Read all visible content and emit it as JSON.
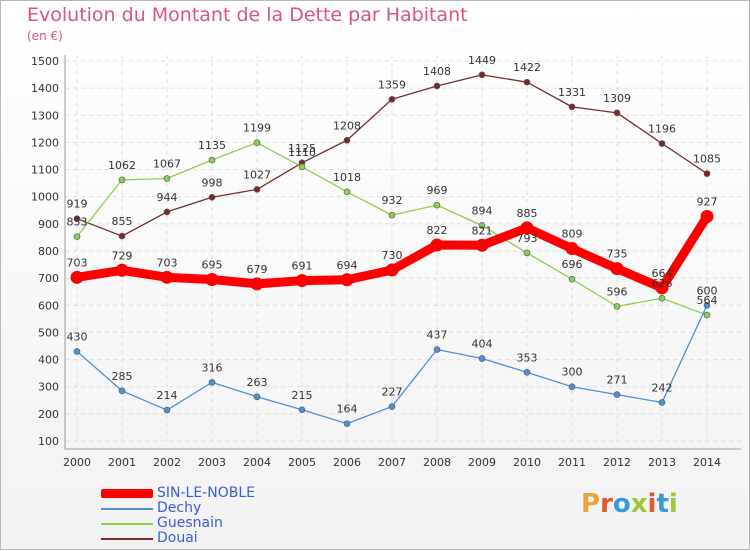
{
  "header": {
    "title": "Evolution du Montant de la Dette par Habitant",
    "subtitle": "(en €)"
  },
  "logo": {
    "text": "Proxiti",
    "colors": [
      "#e8a33d",
      "#e05a2b",
      "#3a9ad9",
      "#a0c43c",
      "#e05a2b",
      "#3a9ad9",
      "#a0c43c"
    ]
  },
  "chart_data": {
    "type": "line",
    "title": "Evolution du Montant de la Dette par Habitant",
    "subtitle": "(en €)",
    "xlabel": "",
    "ylabel": "",
    "x": [
      "2000",
      "2001",
      "2002",
      "2003",
      "2004",
      "2005",
      "2006",
      "2007",
      "2008",
      "2009",
      "2010",
      "2011",
      "2012",
      "2013",
      "2014"
    ],
    "ylim": [
      100,
      1500
    ],
    "yticks": [
      "100",
      "200",
      "300",
      "400",
      "500",
      "600",
      "700",
      "800",
      "900",
      "1000",
      "1100",
      "1200",
      "1300",
      "1400",
      "1500"
    ],
    "grid": true,
    "legend_position": "bottom-left",
    "series": [
      {
        "name": "SIN-LE-NOBLE",
        "color": "#ff0000",
        "values": [
          703,
          729,
          703,
          695,
          679,
          691,
          694,
          730,
          822,
          821,
          885,
          809,
          735,
          664,
          927
        ],
        "labels": [
          "703",
          "729",
          "703",
          "695",
          "679",
          "691",
          "694",
          "730",
          "822",
          "821",
          "885",
          "809",
          "735",
          "664",
          "927"
        ]
      },
      {
        "name": "Dechy",
        "color": "#4f8fd6",
        "values": [
          430,
          285,
          214,
          316,
          263,
          215,
          164,
          227,
          437,
          404,
          353,
          300,
          271,
          242,
          600
        ],
        "labels": [
          "430",
          "285",
          "214",
          "316",
          "263",
          "215",
          "164",
          "227",
          "437",
          "404",
          "353",
          "300",
          "271",
          "242",
          "600"
        ]
      },
      {
        "name": "Guesnain",
        "color": "#8ad04a",
        "values": [
          853,
          1062,
          1067,
          1135,
          1199,
          1110,
          1018,
          932,
          969,
          894,
          793,
          696,
          596,
          626,
          564
        ],
        "labels": [
          "853",
          "1062",
          "1067",
          "1135",
          "1199",
          "1110",
          "1018",
          "932",
          "969",
          "894",
          "793",
          "696",
          "596",
          "626",
          "564"
        ]
      },
      {
        "name": "Douai",
        "color": "#7a2a2a",
        "values": [
          919,
          855,
          944,
          998,
          1027,
          1125,
          1208,
          1359,
          1408,
          1449,
          1422,
          1331,
          1309,
          1196,
          1085
        ],
        "labels": [
          "919",
          "855",
          "944",
          "998",
          "1027",
          "1125",
          "1208",
          "1359",
          "1408",
          "1449",
          "1422",
          "1331",
          "1309",
          "1196",
          "1085"
        ]
      }
    ]
  }
}
